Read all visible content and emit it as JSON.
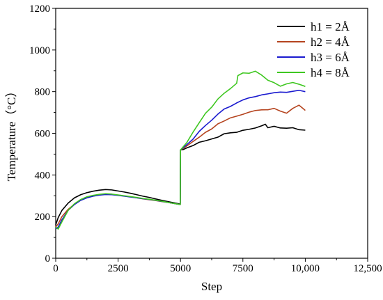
{
  "chart_data": {
    "type": "line",
    "xlabel": "Step",
    "ylabel": "Temperature（°C）",
    "xlim": [
      0,
      12500
    ],
    "ylim": [
      0,
      1200
    ],
    "xticks": [
      0,
      2500,
      5000,
      7500,
      10000,
      12500
    ],
    "xtick_labels": [
      "0",
      "2500",
      "5000",
      "7500",
      "10,000",
      "12,500"
    ],
    "yticks": [
      0,
      200,
      400,
      600,
      800,
      1000,
      1200
    ],
    "ytick_labels": [
      "0",
      "200",
      "400",
      "600",
      "800",
      "1000",
      "1200"
    ],
    "grid": false,
    "legend_position": "top-right",
    "series": [
      {
        "name": "h1 = 2Å",
        "color": "#000000",
        "x": [
          0,
          100,
          250,
          500,
          750,
          1000,
          1250,
          1500,
          1750,
          2000,
          2250,
          2500,
          2750,
          3000,
          3250,
          3500,
          3750,
          4000,
          4250,
          4500,
          4750,
          4990,
          5000,
          5100,
          5250,
          5500,
          5750,
          6000,
          6250,
          6500,
          6750,
          7000,
          7250,
          7500,
          7750,
          8000,
          8250,
          8400,
          8500,
          8750,
          9000,
          9250,
          9500,
          9750,
          10000
        ],
        "y": [
          160,
          195,
          230,
          265,
          290,
          305,
          315,
          322,
          327,
          330,
          328,
          323,
          318,
          312,
          305,
          298,
          292,
          285,
          278,
          272,
          266,
          260,
          520,
          525,
          535,
          545,
          560,
          570,
          578,
          585,
          592,
          598,
          603,
          612,
          618,
          622,
          630,
          638,
          630,
          635,
          628,
          625,
          630,
          622,
          615
        ]
      },
      {
        "name": "h2 = 4Å",
        "color": "#b5441f",
        "x": [
          0,
          100,
          250,
          500,
          750,
          1000,
          1250,
          1500,
          1750,
          2000,
          2250,
          2500,
          2750,
          3000,
          3250,
          3500,
          3750,
          4000,
          4250,
          4500,
          4750,
          4990,
          5000,
          5250,
          5500,
          5750,
          6000,
          6250,
          6500,
          6750,
          7000,
          7250,
          7500,
          7750,
          8000,
          8250,
          8500,
          8750,
          9000,
          9250,
          9500,
          9750,
          10000
        ],
        "y": [
          150,
          165,
          200,
          235,
          260,
          280,
          292,
          300,
          305,
          307,
          306,
          303,
          299,
          295,
          290,
          285,
          281,
          277,
          272,
          268,
          263,
          258,
          520,
          535,
          555,
          580,
          600,
          620,
          640,
          658,
          672,
          685,
          695,
          705,
          712,
          718,
          715,
          720,
          705,
          695,
          715,
          730,
          710
        ]
      },
      {
        "name": "h3 = 6Å",
        "color": "#1a1acf",
        "x": [
          0,
          100,
          250,
          500,
          750,
          1000,
          1250,
          1500,
          1750,
          2000,
          2250,
          2500,
          2750,
          3000,
          3250,
          3500,
          3750,
          4000,
          4250,
          4500,
          4750,
          4990,
          5000,
          5250,
          5500,
          5750,
          6000,
          6250,
          6500,
          6750,
          7000,
          7250,
          7500,
          7750,
          8000,
          8250,
          8500,
          8750,
          9000,
          9250,
          9500,
          9750,
          10000
        ],
        "y": [
          140,
          150,
          185,
          230,
          258,
          278,
          290,
          298,
          303,
          306,
          305,
          302,
          298,
          294,
          290,
          286,
          282,
          278,
          273,
          268,
          263,
          258,
          520,
          545,
          575,
          610,
          640,
          668,
          695,
          718,
          735,
          748,
          760,
          768,
          775,
          780,
          785,
          790,
          795,
          800,
          805,
          810,
          800
        ]
      },
      {
        "name": "h4 = 8Å",
        "color": "#3fc721",
        "x": [
          0,
          100,
          250,
          500,
          750,
          1000,
          1250,
          1500,
          1750,
          2000,
          2250,
          2500,
          2750,
          3000,
          3250,
          3500,
          3750,
          4000,
          4250,
          4500,
          4750,
          4990,
          5000,
          5250,
          5500,
          5750,
          6000,
          6250,
          6500,
          6750,
          7000,
          7250,
          7300,
          7500,
          7750,
          8000,
          8250,
          8500,
          8750,
          9000,
          9250,
          9500,
          9750,
          10000
        ],
        "y": [
          150,
          140,
          175,
          230,
          262,
          282,
          295,
          302,
          307,
          310,
          308,
          304,
          300,
          296,
          292,
          287,
          283,
          279,
          274,
          268,
          263,
          258,
          520,
          560,
          610,
          650,
          690,
          725,
          760,
          790,
          810,
          835,
          880,
          895,
          892,
          900,
          880,
          860,
          845,
          830,
          835,
          840,
          835,
          825
        ]
      }
    ]
  }
}
